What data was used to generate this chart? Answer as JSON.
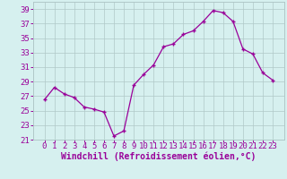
{
  "x": [
    0,
    1,
    2,
    3,
    4,
    5,
    6,
    7,
    8,
    9,
    10,
    11,
    12,
    13,
    14,
    15,
    16,
    17,
    18,
    19,
    20,
    21,
    22,
    23
  ],
  "y": [
    26.5,
    28.2,
    27.3,
    26.8,
    25.5,
    25.2,
    24.8,
    21.5,
    22.2,
    28.5,
    30.0,
    31.3,
    33.8,
    34.2,
    35.5,
    36.0,
    37.3,
    38.8,
    38.5,
    37.3,
    33.5,
    32.8,
    30.2,
    29.2
  ],
  "line_color": "#990099",
  "marker": "+",
  "bg_color": "#d6f0ef",
  "grid_color": "#b0c8c8",
  "axis_label_color": "#990099",
  "tick_color": "#990099",
  "xlabel": "Windchill (Refroidissement éolien,°C)",
  "ylim": [
    21,
    40
  ],
  "yticks": [
    21,
    23,
    25,
    27,
    29,
    31,
    33,
    35,
    37,
    39
  ],
  "xticks": [
    0,
    1,
    2,
    3,
    4,
    5,
    6,
    7,
    8,
    9,
    10,
    11,
    12,
    13,
    14,
    15,
    16,
    17,
    18,
    19,
    20,
    21,
    22,
    23
  ],
  "font_size": 6.5,
  "label_font_size": 7.0,
  "marker_size": 3.5,
  "line_width": 0.9
}
